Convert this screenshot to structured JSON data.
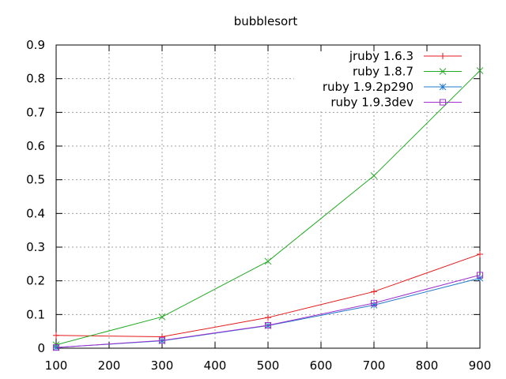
{
  "chart_data": {
    "type": "line",
    "title": "bubblesort",
    "xlabel": "",
    "ylabel": "",
    "x": [
      100,
      300,
      500,
      700,
      900
    ],
    "xlim": [
      100,
      900
    ],
    "ylim": [
      0,
      0.9
    ],
    "x_ticks": [
      100,
      200,
      300,
      400,
      500,
      600,
      700,
      800,
      900
    ],
    "y_ticks": [
      0,
      0.1,
      0.2,
      0.3,
      0.4,
      0.5,
      0.6,
      0.7,
      0.8,
      0.9
    ],
    "x_tick_labels": [
      "100",
      "200",
      "300",
      "400",
      "500",
      "600",
      "700",
      "800",
      "900"
    ],
    "y_tick_labels": [
      "0",
      "0.1",
      "0.2",
      "0.3",
      "0.4",
      "0.5",
      "0.6",
      "0.7",
      "0.8",
      "0.9"
    ],
    "grid": true,
    "legend_position": "top-right",
    "series": [
      {
        "name": "jruby 1.6.3",
        "values": [
          0.038,
          0.034,
          0.091,
          0.168,
          0.279
        ],
        "color": "#e41a1c",
        "marker": "plus"
      },
      {
        "name": "ruby 1.8.7",
        "values": [
          0.01,
          0.093,
          0.258,
          0.512,
          0.824
        ],
        "color": "#22aa22",
        "marker": "cross"
      },
      {
        "name": "ruby 1.9.2p290",
        "values": [
          0.002,
          0.022,
          0.067,
          0.128,
          0.208
        ],
        "color": "#1f78c8",
        "marker": "star"
      },
      {
        "name": "ruby 1.9.3dev",
        "values": [
          0.002,
          0.023,
          0.068,
          0.134,
          0.217
        ],
        "color": "#a030d0",
        "marker": "square"
      }
    ]
  }
}
